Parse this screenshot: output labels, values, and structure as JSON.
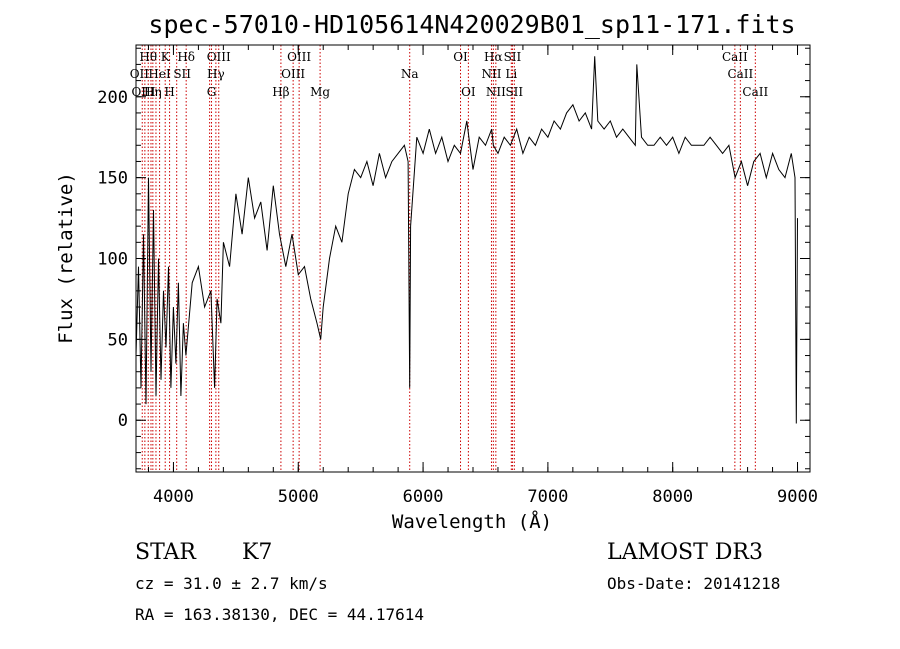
{
  "colors": {
    "spectrum": "#000000",
    "line_marker": "#cc0000",
    "axes": "#000000"
  },
  "info": {
    "object_class": "STAR",
    "subclass": "K7",
    "survey": "LAMOST DR3",
    "redshift": "cz = 31.0 ± 2.7 km/s",
    "obs_date": "Obs-Date: 20141218",
    "coords": "RA = 163.38130, DEC =  44.17614"
  },
  "chart_data": {
    "type": "line",
    "title": "spec-57010-HD105614N420029B01_sp11-171.fits",
    "xlabel": "Wavelength (Å)",
    "ylabel": "Flux (relative)",
    "xlim": [
      3700,
      9100
    ],
    "ylim": [
      -32,
      232
    ],
    "x_ticks": [
      4000,
      5000,
      6000,
      7000,
      8000,
      9000
    ],
    "y_ticks": [
      0,
      50,
      100,
      150,
      200
    ],
    "x_minor_step": 200,
    "y_minor_step": 10,
    "series": [
      {
        "x": [
          3700,
          3720,
          3740,
          3760,
          3780,
          3800,
          3820,
          3840,
          3860,
          3880,
          3900,
          3920,
          3940,
          3960,
          3980,
          4000,
          4020,
          4040,
          4060,
          4080,
          4100,
          4150,
          4200,
          4250,
          4300,
          4330,
          4350,
          4380,
          4400,
          4450,
          4500,
          4550,
          4600,
          4650,
          4700,
          4750,
          4800,
          4850,
          4900,
          4950,
          5000,
          5050,
          5100,
          5150,
          5180,
          5200,
          5250,
          5300,
          5350,
          5400,
          5450,
          5500,
          5550,
          5600,
          5650,
          5700,
          5750,
          5800,
          5850,
          5880,
          5893,
          5900,
          5950,
          6000,
          6050,
          6100,
          6150,
          6200,
          6250,
          6300,
          6350,
          6400,
          6450,
          6500,
          6550,
          6563,
          6600,
          6650,
          6700,
          6750,
          6800,
          6850,
          6900,
          6950,
          7000,
          7050,
          7100,
          7150,
          7200,
          7250,
          7300,
          7350,
          7375,
          7400,
          7450,
          7500,
          7550,
          7600,
          7650,
          7700,
          7712,
          7750,
          7800,
          7850,
          7900,
          7950,
          8000,
          8050,
          8100,
          8150,
          8200,
          8250,
          8300,
          8350,
          8400,
          8450,
          8500,
          8550,
          8600,
          8650,
          8700,
          8750,
          8800,
          8850,
          8900,
          8950,
          8980,
          8990,
          9000
        ],
        "y": [
          40,
          95,
          20,
          115,
          10,
          150,
          30,
          130,
          15,
          100,
          25,
          80,
          45,
          95,
          20,
          70,
          35,
          85,
          15,
          60,
          40,
          85,
          95,
          70,
          80,
          20,
          75,
          60,
          110,
          95,
          140,
          115,
          150,
          125,
          135,
          105,
          145,
          115,
          95,
          115,
          90,
          95,
          75,
          60,
          50,
          70,
          100,
          120,
          110,
          140,
          155,
          150,
          160,
          145,
          165,
          150,
          160,
          165,
          170,
          160,
          20,
          120,
          175,
          165,
          180,
          165,
          175,
          160,
          170,
          165,
          185,
          155,
          175,
          170,
          180,
          170,
          165,
          175,
          170,
          180,
          165,
          175,
          170,
          180,
          175,
          185,
          180,
          190,
          195,
          185,
          190,
          180,
          225,
          185,
          180,
          185,
          175,
          180,
          175,
          170,
          220,
          175,
          170,
          170,
          175,
          170,
          175,
          165,
          175,
          170,
          170,
          170,
          175,
          170,
          165,
          170,
          150,
          160,
          145,
          160,
          165,
          150,
          165,
          155,
          150,
          165,
          150,
          -2,
          125
        ]
      }
    ],
    "line_markers": {
      "x": [
        3750,
        3771,
        3798,
        3820,
        3835,
        3860,
        3889,
        3934,
        3969,
        4026,
        4102,
        4290,
        4305,
        4340,
        4363,
        4861,
        4959,
        5007,
        5175,
        5893,
        6300,
        6363,
        6548,
        6563,
        6583,
        6707,
        6716,
        6731,
        8498,
        8542,
        8662
      ],
      "labels": [
        {
          "text": "Hθ",
          "x": 3798,
          "row": 1
        },
        {
          "text": "K",
          "x": 3934,
          "row": 1
        },
        {
          "text": "Hδ",
          "x": 4102,
          "row": 1
        },
        {
          "text": "OIII",
          "x": 4363,
          "row": 1
        },
        {
          "text": "OIII",
          "x": 5007,
          "row": 1
        },
        {
          "text": "OI",
          "x": 6300,
          "row": 1
        },
        {
          "text": "Hα",
          "x": 6563,
          "row": 1
        },
        {
          "text": "SII",
          "x": 6716,
          "row": 1
        },
        {
          "text": "CaII",
          "x": 8498,
          "row": 1
        },
        {
          "text": "OII",
          "x": 3727,
          "row": 2
        },
        {
          "text": "HeI",
          "x": 3889,
          "row": 2
        },
        {
          "text": "SII",
          "x": 4070,
          "row": 2
        },
        {
          "text": "Hγ",
          "x": 4340,
          "row": 2
        },
        {
          "text": "OIII",
          "x": 4959,
          "row": 2
        },
        {
          "text": "Na",
          "x": 5893,
          "row": 2
        },
        {
          "text": "NII",
          "x": 6548,
          "row": 2
        },
        {
          "text": "Li",
          "x": 6707,
          "row": 2
        },
        {
          "text": "CaII",
          "x": 8542,
          "row": 2
        },
        {
          "text": "OIII",
          "x": 3760,
          "row": 3
        },
        {
          "text": "Hη",
          "x": 3835,
          "row": 3
        },
        {
          "text": "H",
          "x": 3969,
          "row": 3
        },
        {
          "text": "G",
          "x": 4305,
          "row": 3
        },
        {
          "text": "Hβ",
          "x": 4861,
          "row": 3
        },
        {
          "text": "Mg",
          "x": 5175,
          "row": 3
        },
        {
          "text": "OI",
          "x": 6363,
          "row": 3
        },
        {
          "text": "NII",
          "x": 6583,
          "row": 3
        },
        {
          "text": "SII",
          "x": 6731,
          "row": 3
        },
        {
          "text": "CaII",
          "x": 8662,
          "row": 3
        }
      ]
    }
  }
}
